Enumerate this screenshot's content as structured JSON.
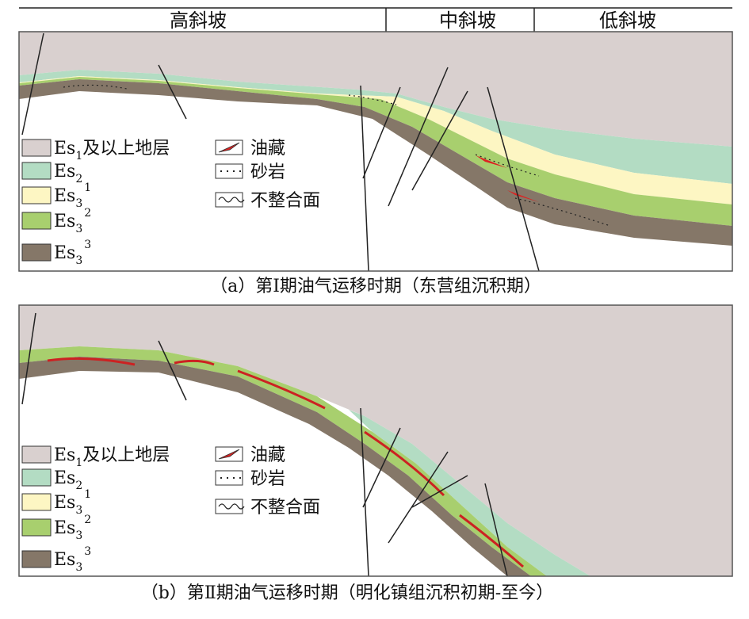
{
  "header": {
    "zones": [
      "高斜坡",
      "中斜坡",
      "低斜坡"
    ]
  },
  "panels": [
    {
      "caption": "（a）第Ⅰ期油气运移时期（东营组沉积期）",
      "strata_legend": [
        {
          "base": "Es",
          "sub": "1",
          "suffix": "及以上地层"
        },
        {
          "base": "Es",
          "sub": "2"
        },
        {
          "base": "Es",
          "sub": "3",
          "sup": "1"
        },
        {
          "base": "Es",
          "sub": "3",
          "sup": "2"
        },
        {
          "base": "Es",
          "sub": "3",
          "sup": "3"
        }
      ],
      "symbol_legend": [
        "油藏",
        "砂岩",
        "不整合面"
      ]
    },
    {
      "caption": "（b）第Ⅱ期油气运移时期（明化镇组沉积初期-至今）",
      "strata_legend": [
        {
          "base": "Es",
          "sub": "1",
          "suffix": "及以上地层"
        },
        {
          "base": "Es",
          "sub": "2"
        },
        {
          "base": "Es",
          "sub": "3",
          "sup": "1"
        },
        {
          "base": "Es",
          "sub": "3",
          "sup": "2"
        },
        {
          "base": "Es",
          "sub": "3",
          "sup": "3"
        }
      ],
      "symbol_legend": [
        "油藏",
        "砂岩",
        "不整合面"
      ]
    }
  ]
}
